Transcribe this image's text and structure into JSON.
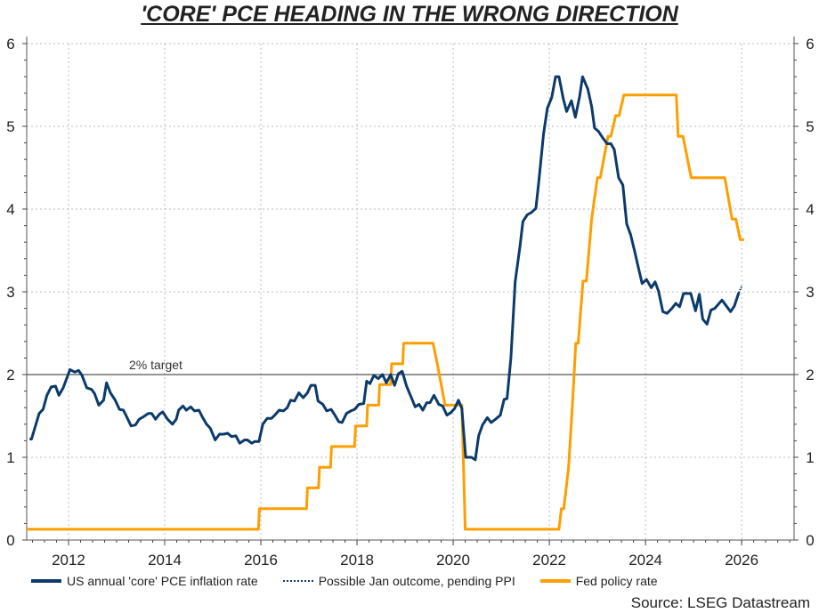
{
  "chart_data": {
    "type": "line",
    "title": "'CORE' PCE HEADING IN THE WRONG DIRECTION",
    "xlim": [
      2011.13,
      2027.09
    ],
    "ylim": [
      0,
      6
    ],
    "x_ticks": [
      "2012",
      "2014",
      "2016",
      "2018",
      "2020",
      "2022",
      "2024",
      "2026"
    ],
    "y_ticks_left": [
      "0",
      "1",
      "2",
      "3",
      "4",
      "5",
      "6"
    ],
    "y_ticks_right": [
      "0",
      "1",
      "2",
      "3",
      "4",
      "5",
      "6"
    ],
    "grid": true,
    "legend_position": "bottom",
    "reference_line": {
      "value": 2,
      "label": "2% target"
    },
    "source": "Source: LSEG Datastream",
    "colors": {
      "core_pce": "#0b3a6b",
      "fed": "#ff9e00",
      "target": "#555555"
    },
    "series": [
      {
        "name": "US annual 'core' PCE inflation rate",
        "style": "solid",
        "points": [
          [
            2011.19,
            1.22
          ],
          [
            2011.23,
            1.22
          ],
          [
            2011.39,
            1.53
          ],
          [
            2011.47,
            1.58
          ],
          [
            2011.55,
            1.75
          ],
          [
            2011.64,
            1.85
          ],
          [
            2011.73,
            1.86
          ],
          [
            2011.8,
            1.75
          ],
          [
            2011.89,
            1.84
          ],
          [
            2012.03,
            2.06
          ],
          [
            2012.13,
            2.03
          ],
          [
            2012.21,
            2.05
          ],
          [
            2012.28,
            1.99
          ],
          [
            2012.38,
            1.84
          ],
          [
            2012.48,
            1.82
          ],
          [
            2012.54,
            1.77
          ],
          [
            2012.63,
            1.63
          ],
          [
            2012.73,
            1.69
          ],
          [
            2012.79,
            1.9
          ],
          [
            2012.87,
            1.78
          ],
          [
            2012.97,
            1.69
          ],
          [
            2013.06,
            1.58
          ],
          [
            2013.14,
            1.57
          ],
          [
            2013.21,
            1.49
          ],
          [
            2013.3,
            1.38
          ],
          [
            2013.39,
            1.39
          ],
          [
            2013.47,
            1.46
          ],
          [
            2013.56,
            1.49
          ],
          [
            2013.66,
            1.53
          ],
          [
            2013.73,
            1.53
          ],
          [
            2013.81,
            1.46
          ],
          [
            2013.89,
            1.52
          ],
          [
            2013.96,
            1.55
          ],
          [
            2014.06,
            1.46
          ],
          [
            2014.16,
            1.4
          ],
          [
            2014.24,
            1.46
          ],
          [
            2014.29,
            1.57
          ],
          [
            2014.38,
            1.62
          ],
          [
            2014.45,
            1.57
          ],
          [
            2014.54,
            1.61
          ],
          [
            2014.62,
            1.56
          ],
          [
            2014.71,
            1.57
          ],
          [
            2014.79,
            1.48
          ],
          [
            2014.87,
            1.4
          ],
          [
            2014.95,
            1.35
          ],
          [
            2015.05,
            1.21
          ],
          [
            2015.14,
            1.28
          ],
          [
            2015.23,
            1.28
          ],
          [
            2015.31,
            1.29
          ],
          [
            2015.39,
            1.25
          ],
          [
            2015.48,
            1.26
          ],
          [
            2015.56,
            1.17
          ],
          [
            2015.66,
            1.21
          ],
          [
            2015.72,
            1.21
          ],
          [
            2015.81,
            1.17
          ],
          [
            2015.87,
            1.19
          ],
          [
            2015.96,
            1.19
          ],
          [
            2016.04,
            1.4
          ],
          [
            2016.13,
            1.47
          ],
          [
            2016.22,
            1.47
          ],
          [
            2016.29,
            1.51
          ],
          [
            2016.38,
            1.57
          ],
          [
            2016.47,
            1.56
          ],
          [
            2016.55,
            1.6
          ],
          [
            2016.62,
            1.69
          ],
          [
            2016.7,
            1.68
          ],
          [
            2016.79,
            1.78
          ],
          [
            2016.88,
            1.72
          ],
          [
            2016.97,
            1.78
          ],
          [
            2017.04,
            1.87
          ],
          [
            2017.13,
            1.87
          ],
          [
            2017.19,
            1.68
          ],
          [
            2017.29,
            1.64
          ],
          [
            2017.37,
            1.56
          ],
          [
            2017.46,
            1.58
          ],
          [
            2017.54,
            1.51
          ],
          [
            2017.62,
            1.43
          ],
          [
            2017.69,
            1.42
          ],
          [
            2017.78,
            1.53
          ],
          [
            2017.87,
            1.56
          ],
          [
            2017.95,
            1.58
          ],
          [
            2018.04,
            1.64
          ],
          [
            2018.14,
            1.65
          ],
          [
            2018.2,
            1.92
          ],
          [
            2018.27,
            1.89
          ],
          [
            2018.35,
            1.99
          ],
          [
            2018.44,
            1.95
          ],
          [
            2018.53,
            2.0
          ],
          [
            2018.61,
            1.9
          ],
          [
            2018.7,
            2.0
          ],
          [
            2018.78,
            1.87
          ],
          [
            2018.86,
            2.01
          ],
          [
            2018.94,
            2.04
          ],
          [
            2019.03,
            1.86
          ],
          [
            2019.11,
            1.75
          ],
          [
            2019.21,
            1.61
          ],
          [
            2019.29,
            1.64
          ],
          [
            2019.37,
            1.57
          ],
          [
            2019.45,
            1.66
          ],
          [
            2019.52,
            1.66
          ],
          [
            2019.6,
            1.75
          ],
          [
            2019.7,
            1.64
          ],
          [
            2019.78,
            1.62
          ],
          [
            2019.87,
            1.51
          ],
          [
            2019.95,
            1.54
          ],
          [
            2020.03,
            1.59
          ],
          [
            2020.11,
            1.69
          ],
          [
            2020.18,
            1.59
          ],
          [
            2020.26,
            1.0
          ],
          [
            2020.38,
            1.0
          ],
          [
            2020.46,
            0.97
          ],
          [
            2020.53,
            1.26
          ],
          [
            2020.61,
            1.39
          ],
          [
            2020.71,
            1.48
          ],
          [
            2020.79,
            1.42
          ],
          [
            2020.88,
            1.46
          ],
          [
            2020.98,
            1.51
          ],
          [
            2021.06,
            1.7
          ],
          [
            2021.12,
            1.71
          ],
          [
            2021.2,
            2.2
          ],
          [
            2021.29,
            3.12
          ],
          [
            2021.39,
            3.55
          ],
          [
            2021.45,
            3.85
          ],
          [
            2021.54,
            3.93
          ],
          [
            2021.63,
            3.96
          ],
          [
            2021.72,
            4.01
          ],
          [
            2021.79,
            4.38
          ],
          [
            2021.88,
            4.91
          ],
          [
            2021.96,
            5.22
          ],
          [
            2022.05,
            5.35
          ],
          [
            2022.13,
            5.6
          ],
          [
            2022.2,
            5.6
          ],
          [
            2022.29,
            5.33
          ],
          [
            2022.36,
            5.18
          ],
          [
            2022.46,
            5.31
          ],
          [
            2022.54,
            5.11
          ],
          [
            2022.63,
            5.36
          ],
          [
            2022.69,
            5.6
          ],
          [
            2022.8,
            5.45
          ],
          [
            2022.88,
            5.24
          ],
          [
            2022.94,
            4.98
          ],
          [
            2023.02,
            4.94
          ],
          [
            2023.1,
            4.87
          ],
          [
            2023.2,
            4.79
          ],
          [
            2023.28,
            4.79
          ],
          [
            2023.35,
            4.72
          ],
          [
            2023.44,
            4.38
          ],
          [
            2023.53,
            4.29
          ],
          [
            2023.61,
            3.82
          ],
          [
            2023.69,
            3.69
          ],
          [
            2023.77,
            3.5
          ],
          [
            2023.84,
            3.32
          ],
          [
            2023.93,
            3.1
          ],
          [
            2024.02,
            3.15
          ],
          [
            2024.12,
            3.05
          ],
          [
            2024.2,
            3.12
          ],
          [
            2024.27,
            3.01
          ],
          [
            2024.36,
            2.76
          ],
          [
            2024.45,
            2.74
          ],
          [
            2024.55,
            2.8
          ],
          [
            2024.63,
            2.86
          ],
          [
            2024.71,
            2.82
          ],
          [
            2024.79,
            2.98
          ],
          [
            2024.94,
            2.98
          ],
          [
            2025.04,
            2.77
          ],
          [
            2025.12,
            2.97
          ],
          [
            2025.19,
            2.67
          ],
          [
            2025.28,
            2.61
          ],
          [
            2025.36,
            2.78
          ],
          [
            2025.44,
            2.8
          ],
          [
            2025.59,
            2.9
          ],
          [
            2025.77,
            2.76
          ],
          [
            2025.85,
            2.83
          ],
          [
            2025.94,
            2.99
          ]
        ]
      },
      {
        "name": "Possible Jan outcome, pending PPI",
        "style": "dotted",
        "points": [
          [
            2025.94,
            2.99
          ],
          [
            2026.01,
            3.08
          ]
        ]
      },
      {
        "name": "Fed policy rate",
        "style": "solid",
        "points": [
          [
            2011.13,
            0.13
          ],
          [
            2015.95,
            0.13
          ],
          [
            2015.97,
            0.38
          ],
          [
            2016.95,
            0.38
          ],
          [
            2016.97,
            0.63
          ],
          [
            2017.2,
            0.63
          ],
          [
            2017.22,
            0.88
          ],
          [
            2017.45,
            0.88
          ],
          [
            2017.47,
            1.13
          ],
          [
            2017.95,
            1.13
          ],
          [
            2017.97,
            1.38
          ],
          [
            2018.2,
            1.38
          ],
          [
            2018.22,
            1.63
          ],
          [
            2018.45,
            1.63
          ],
          [
            2018.47,
            1.88
          ],
          [
            2018.7,
            1.88
          ],
          [
            2018.72,
            2.13
          ],
          [
            2018.95,
            2.13
          ],
          [
            2018.97,
            2.38
          ],
          [
            2019.58,
            2.38
          ],
          [
            2019.67,
            2.13
          ],
          [
            2019.75,
            1.88
          ],
          [
            2019.83,
            1.63
          ],
          [
            2020.18,
            1.63
          ],
          [
            2020.25,
            0.13
          ],
          [
            2022.2,
            0.13
          ],
          [
            2022.25,
            0.38
          ],
          [
            2022.3,
            0.38
          ],
          [
            2022.4,
            0.88
          ],
          [
            2022.48,
            1.63
          ],
          [
            2022.55,
            2.38
          ],
          [
            2022.6,
            2.38
          ],
          [
            2022.7,
            3.13
          ],
          [
            2022.77,
            3.13
          ],
          [
            2022.88,
            3.88
          ],
          [
            2023.0,
            4.38
          ],
          [
            2023.06,
            4.38
          ],
          [
            2023.22,
            4.88
          ],
          [
            2023.28,
            4.88
          ],
          [
            2023.38,
            5.13
          ],
          [
            2023.45,
            5.13
          ],
          [
            2023.55,
            5.38
          ],
          [
            2024.64,
            5.38
          ],
          [
            2024.68,
            4.88
          ],
          [
            2024.78,
            4.88
          ],
          [
            2024.95,
            4.38
          ],
          [
            2025.65,
            4.38
          ],
          [
            2025.8,
            3.88
          ],
          [
            2025.88,
            3.88
          ],
          [
            2025.97,
            3.63
          ],
          [
            2026.05,
            3.63
          ]
        ]
      }
    ]
  }
}
